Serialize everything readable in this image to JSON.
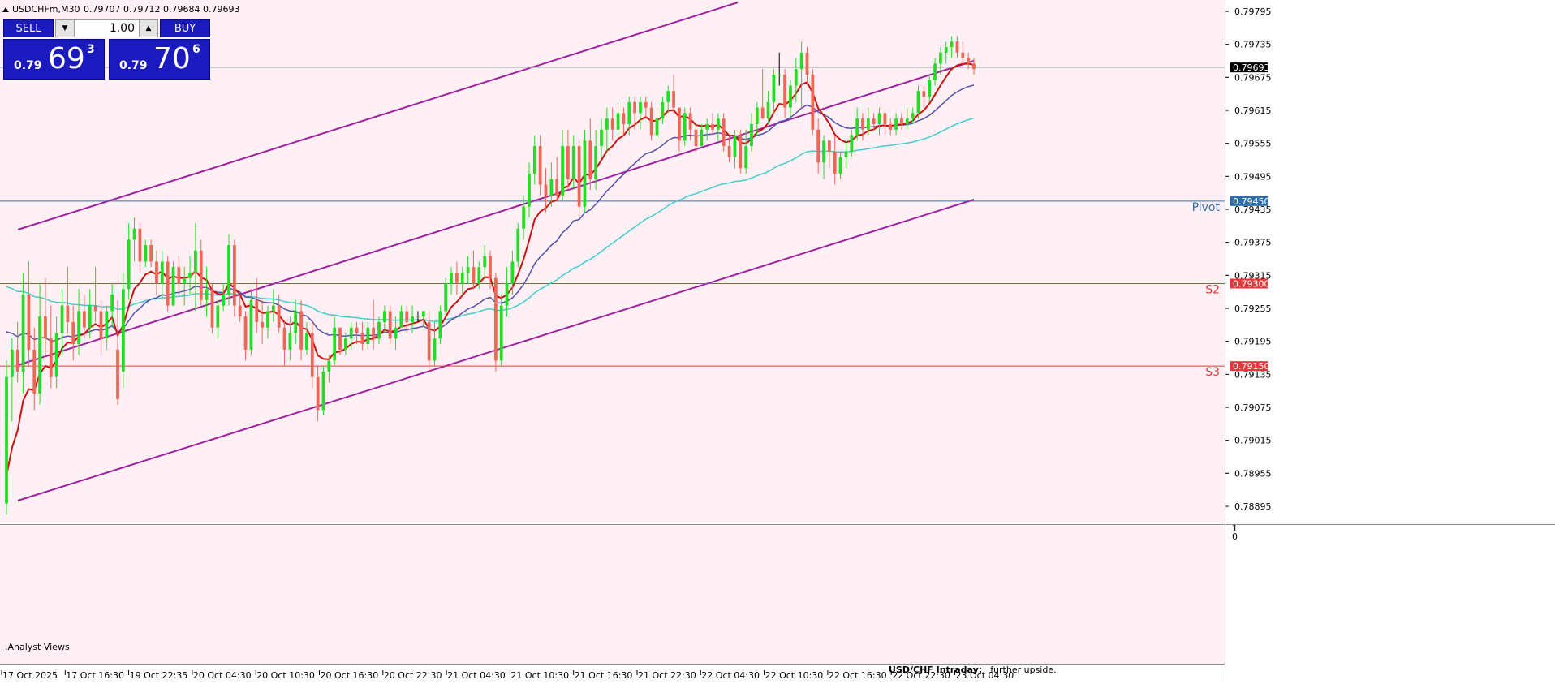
{
  "header": {
    "symbol": "USDCHFm,M30",
    "ohlc": "0.79707 0.79712 0.79684 0.79693"
  },
  "trade_panel": {
    "sell_label": "SELL",
    "buy_label": "BUY",
    "lot": "1.00",
    "sell_price": {
      "small": "0.79",
      "big": "69",
      "sup": "3"
    },
    "buy_price": {
      "small": "0.79",
      "big": "70",
      "sup": "6"
    }
  },
  "levels": [
    {
      "name": "Pivot",
      "price": "0.79450",
      "value": 0.7945,
      "color": "#2c6fb0"
    },
    {
      "name": "S2",
      "price": "0.79300",
      "value": 0.793,
      "color": "#e03a3a"
    },
    {
      "name": "S3",
      "price": "0.79150",
      "value": 0.7915,
      "color": "#e03a3a"
    }
  ],
  "current_price": {
    "label": "0.79693",
    "value": 0.79693
  },
  "subwindow": {
    "label": ".Analyst Views",
    "text_bold": "USD/CHF Intraday:",
    "text": "further upside.",
    "scale_max": "1",
    "scale_min": "0"
  },
  "chart_data": {
    "type": "candlestick",
    "symbol": "USDCHFm",
    "timeframe": "M30",
    "colors": {
      "bull": "#22dd22",
      "bear": "#ee6655",
      "background": "#fff0f5"
    },
    "y_axis_ticks": [
      "0.79795",
      "0.79735",
      "0.79675",
      "0.79615",
      "0.79555",
      "0.79495",
      "0.79435",
      "0.79375",
      "0.79315",
      "0.79255",
      "0.79195",
      "0.79135",
      "0.79075",
      "0.79015",
      "0.78955",
      "0.78895"
    ],
    "ylim": [
      0.7887,
      0.7981
    ],
    "x_axis_labels": [
      "17 Oct 2025",
      "17 Oct 16:30",
      "19 Oct 22:35",
      "20 Oct 04:30",
      "20 Oct 10:30",
      "20 Oct 16:30",
      "20 Oct 22:30",
      "21 Oct 04:30",
      "21 Oct 10:30",
      "21 Oct 16:30",
      "21 Oct 22:30",
      "22 Oct 04:30",
      "22 Oct 10:30",
      "22 Oct 16:30",
      "22 Oct 22:30",
      "23 Oct 04:30"
    ],
    "candles": [
      [
        0.789,
        0.7916,
        0.7888,
        0.7913
      ],
      [
        0.7913,
        0.792,
        0.7905,
        0.7918
      ],
      [
        0.7918,
        0.7923,
        0.7912,
        0.7914
      ],
      [
        0.7914,
        0.7932,
        0.791,
        0.7928
      ],
      [
        0.7928,
        0.7934,
        0.7915,
        0.7918
      ],
      [
        0.7918,
        0.7922,
        0.7907,
        0.791
      ],
      [
        0.791,
        0.793,
        0.7908,
        0.7924
      ],
      [
        0.7924,
        0.7931,
        0.7917,
        0.792
      ],
      [
        0.792,
        0.7926,
        0.7911,
        0.7913
      ],
      [
        0.7913,
        0.7924,
        0.7911,
        0.7921
      ],
      [
        0.7921,
        0.7929,
        0.7917,
        0.7926
      ],
      [
        0.7926,
        0.7933,
        0.7921,
        0.7923
      ],
      [
        0.7923,
        0.7926,
        0.7916,
        0.7919
      ],
      [
        0.7919,
        0.7929,
        0.7917,
        0.7925
      ],
      [
        0.7925,
        0.7928,
        0.792,
        0.7922
      ],
      [
        0.7922,
        0.7929,
        0.792,
        0.7926
      ],
      [
        0.7926,
        0.7933,
        0.7923,
        0.7925
      ],
      [
        0.7925,
        0.7927,
        0.7917,
        0.792
      ],
      [
        0.792,
        0.7926,
        0.7918,
        0.7925
      ],
      [
        0.7925,
        0.793,
        0.7922,
        0.7928
      ],
      [
        0.7918,
        0.7927,
        0.7908,
        0.7909
      ],
      [
        0.7914,
        0.7932,
        0.7911,
        0.7929
      ],
      [
        0.7929,
        0.7941,
        0.7927,
        0.7938
      ],
      [
        0.7938,
        0.7942,
        0.7934,
        0.794
      ],
      [
        0.794,
        0.7941,
        0.7932,
        0.7934
      ],
      [
        0.7934,
        0.7938,
        0.7933,
        0.7937
      ],
      [
        0.7937,
        0.7938,
        0.7933,
        0.7934
      ],
      [
        0.7934,
        0.7936,
        0.7928,
        0.793
      ],
      [
        0.793,
        0.7936,
        0.7927,
        0.7934
      ],
      [
        0.7934,
        0.7935,
        0.7925,
        0.7926
      ],
      [
        0.7926,
        0.7934,
        0.7926,
        0.7933
      ],
      [
        0.7933,
        0.7935,
        0.7928,
        0.793
      ],
      [
        0.793,
        0.7933,
        0.7926,
        0.7931
      ],
      [
        0.7931,
        0.7935,
        0.7928,
        0.7932
      ],
      [
        0.7932,
        0.7941,
        0.7925,
        0.7936
      ],
      [
        0.7936,
        0.7938,
        0.7926,
        0.7927
      ],
      [
        0.7927,
        0.7933,
        0.7924,
        0.7929
      ],
      [
        0.7929,
        0.793,
        0.7921,
        0.7922
      ],
      [
        0.7922,
        0.7927,
        0.792,
        0.7926
      ],
      [
        0.7926,
        0.793,
        0.7925,
        0.7928
      ],
      [
        0.7928,
        0.7939,
        0.7926,
        0.7937
      ],
      [
        0.7937,
        0.7938,
        0.7924,
        0.7926
      ],
      [
        0.7926,
        0.7928,
        0.7923,
        0.7924
      ],
      [
        0.7924,
        0.7925,
        0.7916,
        0.7918
      ],
      [
        0.7918,
        0.7929,
        0.7917,
        0.7927
      ],
      [
        0.7927,
        0.7931,
        0.7921,
        0.7923
      ],
      [
        0.7923,
        0.7927,
        0.7919,
        0.7922
      ],
      [
        0.7922,
        0.7926,
        0.792,
        0.7925
      ],
      [
        0.7925,
        0.7929,
        0.7923,
        0.7926
      ],
      [
        0.7926,
        0.7928,
        0.7921,
        0.7922
      ],
      [
        0.7922,
        0.7923,
        0.7915,
        0.7918
      ],
      [
        0.7918,
        0.7924,
        0.7916,
        0.7921
      ],
      [
        0.7921,
        0.7927,
        0.7919,
        0.7925
      ],
      [
        0.7925,
        0.7927,
        0.7916,
        0.7918
      ],
      [
        0.7918,
        0.7923,
        0.7917,
        0.7921
      ],
      [
        0.7921,
        0.7923,
        0.7911,
        0.7913
      ],
      [
        0.7913,
        0.7915,
        0.7905,
        0.7907
      ],
      [
        0.7907,
        0.7915,
        0.7906,
        0.7914
      ],
      [
        0.7914,
        0.7917,
        0.7912,
        0.7916
      ],
      [
        0.7916,
        0.7924,
        0.7915,
        0.7922
      ],
      [
        0.7922,
        0.7922,
        0.7917,
        0.7918
      ],
      [
        0.7918,
        0.7921,
        0.7917,
        0.792
      ],
      [
        0.792,
        0.7923,
        0.7918,
        0.7922
      ],
      [
        0.7922,
        0.7923,
        0.7919,
        0.7921
      ],
      [
        0.7921,
        0.7923,
        0.7918,
        0.7919
      ],
      [
        0.7919,
        0.7923,
        0.7918,
        0.7922
      ],
      [
        0.7922,
        0.7927,
        0.7918,
        0.792
      ],
      [
        0.792,
        0.7924,
        0.7919,
        0.7923
      ],
      [
        0.7923,
        0.7926,
        0.7921,
        0.7925
      ],
      [
        0.7925,
        0.7926,
        0.7919,
        0.792
      ],
      [
        0.792,
        0.7924,
        0.7918,
        0.7922
      ],
      [
        0.7922,
        0.7926,
        0.7922,
        0.7925
      ],
      [
        0.7925,
        0.7926,
        0.7921,
        0.7923
      ],
      [
        0.7923,
        0.7926,
        0.7921,
        0.7924
      ],
      [
        0.7924,
        0.7925,
        0.7923,
        0.7924
      ],
      [
        0.7924,
        0.7925,
        0.7922,
        0.7925
      ],
      [
        0.7923,
        0.7925,
        0.7914,
        0.7916
      ],
      [
        0.7916,
        0.7923,
        0.7915,
        0.792
      ],
      [
        0.792,
        0.7926,
        0.7919,
        0.7925
      ],
      [
        0.7925,
        0.7931,
        0.7924,
        0.793
      ],
      [
        0.793,
        0.7933,
        0.7928,
        0.7932
      ],
      [
        0.7932,
        0.7934,
        0.7928,
        0.793
      ],
      [
        0.793,
        0.7933,
        0.7928,
        0.7932
      ],
      [
        0.7932,
        0.7935,
        0.793,
        0.7933
      ],
      [
        0.7933,
        0.7936,
        0.7929,
        0.793
      ],
      [
        0.793,
        0.7934,
        0.7929,
        0.7933
      ],
      [
        0.7933,
        0.7937,
        0.7931,
        0.7935
      ],
      [
        0.7935,
        0.7936,
        0.7929,
        0.7931
      ],
      [
        0.7931,
        0.7932,
        0.7914,
        0.7916
      ],
      [
        0.7916,
        0.7928,
        0.7915,
        0.7926
      ],
      [
        0.7926,
        0.7933,
        0.7924,
        0.793
      ],
      [
        0.793,
        0.7936,
        0.7928,
        0.7934
      ],
      [
        0.7934,
        0.7941,
        0.7933,
        0.794
      ],
      [
        0.794,
        0.7946,
        0.7938,
        0.7944
      ],
      [
        0.7944,
        0.7952,
        0.7942,
        0.795
      ],
      [
        0.795,
        0.7957,
        0.7948,
        0.7955
      ],
      [
        0.7955,
        0.7957,
        0.7946,
        0.7948
      ],
      [
        0.7948,
        0.7951,
        0.7943,
        0.7946
      ],
      [
        0.7946,
        0.7952,
        0.7944,
        0.7949
      ],
      [
        0.7949,
        0.7953,
        0.7945,
        0.7946
      ],
      [
        0.7946,
        0.7958,
        0.7945,
        0.7955
      ],
      [
        0.7955,
        0.7958,
        0.7947,
        0.7949
      ],
      [
        0.7949,
        0.7957,
        0.7947,
        0.7955
      ],
      [
        0.7955,
        0.7956,
        0.7942,
        0.7944
      ],
      [
        0.7944,
        0.7958,
        0.7943,
        0.7956
      ],
      [
        0.7956,
        0.796,
        0.7947,
        0.7949
      ],
      [
        0.7949,
        0.7958,
        0.7947,
        0.7955
      ],
      [
        0.7955,
        0.796,
        0.7953,
        0.7958
      ],
      [
        0.7958,
        0.7962,
        0.7954,
        0.796
      ],
      [
        0.796,
        0.7962,
        0.7956,
        0.7958
      ],
      [
        0.7958,
        0.7963,
        0.7957,
        0.7961
      ],
      [
        0.7961,
        0.7962,
        0.7957,
        0.7959
      ],
      [
        0.7959,
        0.7964,
        0.7957,
        0.7963
      ],
      [
        0.7963,
        0.7964,
        0.7958,
        0.7961
      ],
      [
        0.7961,
        0.7964,
        0.7958,
        0.7963
      ],
      [
        0.7963,
        0.7964,
        0.796,
        0.7962
      ],
      [
        0.7962,
        0.7963,
        0.7956,
        0.7957
      ],
      [
        0.7957,
        0.7962,
        0.7956,
        0.796
      ],
      [
        0.796,
        0.7964,
        0.7959,
        0.7963
      ],
      [
        0.7963,
        0.7966,
        0.7961,
        0.7965
      ],
      [
        0.7965,
        0.7968,
        0.7961,
        0.7962
      ],
      [
        0.7962,
        0.7962,
        0.7954,
        0.7956
      ],
      [
        0.7956,
        0.7962,
        0.7955,
        0.7961
      ],
      [
        0.7961,
        0.7962,
        0.7956,
        0.7958
      ],
      [
        0.7958,
        0.7959,
        0.7954,
        0.7955
      ],
      [
        0.7955,
        0.7959,
        0.7955,
        0.7958
      ],
      [
        0.7958,
        0.796,
        0.7956,
        0.7959
      ],
      [
        0.7959,
        0.7961,
        0.7957,
        0.7958
      ],
      [
        0.7958,
        0.7961,
        0.7956,
        0.796
      ],
      [
        0.796,
        0.7961,
        0.7954,
        0.7955
      ],
      [
        0.7955,
        0.7957,
        0.7952,
        0.7953
      ],
      [
        0.7953,
        0.7958,
        0.7951,
        0.7957
      ],
      [
        0.7957,
        0.7958,
        0.795,
        0.7951
      ],
      [
        0.7951,
        0.7958,
        0.795,
        0.7955
      ],
      [
        0.7955,
        0.7961,
        0.7954,
        0.7959
      ],
      [
        0.7959,
        0.7963,
        0.7957,
        0.7962
      ],
      [
        0.7962,
        0.7969,
        0.796,
        0.796
      ],
      [
        0.796,
        0.7965,
        0.7959,
        0.7963
      ],
      [
        0.7963,
        0.7969,
        0.7961,
        0.7968
      ],
      [
        0.7968,
        0.7972,
        0.7966,
        0.7968
      ],
      [
        0.7968,
        0.7969,
        0.796,
        0.7962
      ],
      [
        0.7962,
        0.7967,
        0.796,
        0.7966
      ],
      [
        0.7966,
        0.7971,
        0.7963,
        0.7969
      ],
      [
        0.7969,
        0.7974,
        0.7962,
        0.7972
      ],
      [
        0.7972,
        0.7973,
        0.7966,
        0.7968
      ],
      [
        0.7968,
        0.7969,
        0.7957,
        0.7958
      ],
      [
        0.7958,
        0.796,
        0.795,
        0.7952
      ],
      [
        0.7952,
        0.7957,
        0.7949,
        0.7956
      ],
      [
        0.7956,
        0.7956,
        0.7951,
        0.7954
      ],
      [
        0.7954,
        0.7957,
        0.7948,
        0.795
      ],
      [
        0.795,
        0.7954,
        0.7949,
        0.7953
      ],
      [
        0.7953,
        0.7956,
        0.7951,
        0.7954
      ],
      [
        0.7954,
        0.7958,
        0.7953,
        0.7957
      ],
      [
        0.7957,
        0.7962,
        0.7956,
        0.796
      ],
      [
        0.796,
        0.7961,
        0.7956,
        0.7958
      ],
      [
        0.7958,
        0.7962,
        0.7957,
        0.796
      ],
      [
        0.796,
        0.7961,
        0.7958,
        0.7959
      ],
      [
        0.7959,
        0.7962,
        0.7957,
        0.7961
      ],
      [
        0.7961,
        0.7961,
        0.7957,
        0.7959
      ],
      [
        0.7959,
        0.796,
        0.7957,
        0.7958
      ],
      [
        0.7958,
        0.7961,
        0.7957,
        0.796
      ],
      [
        0.796,
        0.7961,
        0.7958,
        0.7959
      ],
      [
        0.7959,
        0.7962,
        0.7958,
        0.796
      ],
      [
        0.796,
        0.7962,
        0.7959,
        0.7961
      ],
      [
        0.7961,
        0.7966,
        0.796,
        0.7965
      ],
      [
        0.7965,
        0.7966,
        0.7962,
        0.7964
      ],
      [
        0.7964,
        0.7968,
        0.7963,
        0.7967
      ],
      [
        0.7967,
        0.7971,
        0.7966,
        0.797
      ],
      [
        0.797,
        0.7973,
        0.7968,
        0.7972
      ],
      [
        0.7972,
        0.7974,
        0.797,
        0.7973
      ],
      [
        0.7973,
        0.7975,
        0.7971,
        0.7974
      ],
      [
        0.7974,
        0.7975,
        0.7971,
        0.7972
      ],
      [
        0.7972,
        0.7974,
        0.797,
        0.7971
      ],
      [
        0.7971,
        0.7972,
        0.7969,
        0.797
      ],
      [
        0.797,
        0.7971,
        0.7968,
        0.7969
      ]
    ]
  }
}
